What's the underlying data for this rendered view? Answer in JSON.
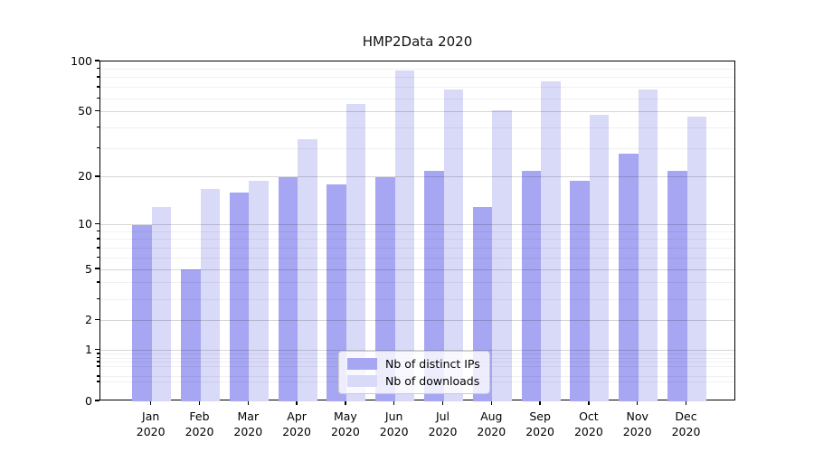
{
  "title": "HMP2Data 2020",
  "chart_data": {
    "type": "bar",
    "title": "HMP2Data 2020",
    "y_scale": "log1p",
    "ylim": [
      0,
      100
    ],
    "grid": true,
    "legend_position": "lower center",
    "x_tick_year": "2020",
    "x_tick_months": [
      "Jan",
      "Feb",
      "Mar",
      "Apr",
      "May",
      "Jun",
      "Jul",
      "Aug",
      "Sep",
      "Oct",
      "Nov",
      "Dec"
    ],
    "y_major_ticks": [
      0,
      1,
      2,
      5,
      10,
      20,
      50,
      100
    ],
    "y_minor_ticks": [
      0.3,
      0.4,
      0.6,
      0.7,
      0.8,
      0.9,
      3,
      4,
      6,
      7,
      8,
      9,
      30,
      40,
      60,
      70,
      80,
      90
    ],
    "series": [
      {
        "name": "Nb of distinct IPs",
        "color": "#a6a6f3",
        "values": [
          10,
          5,
          16,
          20,
          18,
          20,
          22,
          13,
          22,
          19,
          28,
          22
        ]
      },
      {
        "name": "Nb of downloads",
        "color": "#d9d9f8",
        "values": [
          13,
          17,
          19,
          34,
          56,
          88,
          68,
          51,
          76,
          48,
          68,
          47
        ]
      }
    ]
  },
  "colors": {
    "spine": "#000000",
    "grid_major": "rgba(0,0,0,0.16)",
    "grid_minor": "rgba(0,0,0,0.055)",
    "legend_border": "#cccccc",
    "legend_bg": "rgba(255,255,255,0.8)"
  }
}
